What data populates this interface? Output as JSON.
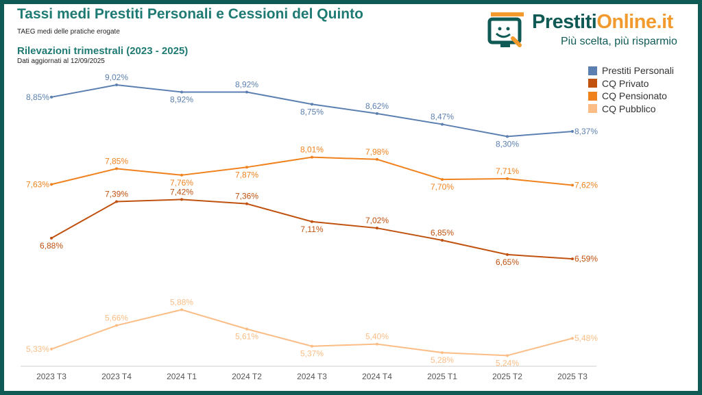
{
  "header": {
    "title": "Tassi medi Prestiti Personali e Cessioni del Quinto",
    "subtitle": "TAEG medi delle pratiche erogate",
    "section": "Rilevazioni trimestrali (2023 - 2025)",
    "updated": "Dati aggiornati al 12/09/2025"
  },
  "logo": {
    "brand_a": "Prestiti",
    "brand_b": "Online.it",
    "tagline": "Più scelta, più risparmio"
  },
  "chart_data": {
    "type": "line",
    "title": "Tassi medi Prestiti Personali e Cessioni del Quinto",
    "xlabel": "",
    "ylabel": "",
    "ylim": [
      5.09,
      9.25
    ],
    "grid": false,
    "legend": "top-right",
    "categories": [
      "2023 T3",
      "2023 T4",
      "2024 T1",
      "2024 T2",
      "2024 T3",
      "2024 T4",
      "2025 T1",
      "2025 T2",
      "2025 T3"
    ],
    "series": [
      {
        "name": "Prestiti Personali",
        "color": "#5b7fb0",
        "values": [
          8.85,
          9.02,
          8.92,
          8.92,
          8.75,
          8.62,
          8.47,
          8.3,
          8.37
        ],
        "labels": [
          "8,85%",
          "9,02%",
          "8,92%",
          "8,92%",
          "8,75%",
          "8,62%",
          "8,47%",
          "8,30%",
          "8,37%"
        ],
        "label_pos": [
          "left",
          "above",
          "below",
          "above",
          "below",
          "above",
          "above",
          "below",
          "right"
        ]
      },
      {
        "name": "CQ Privato",
        "color": "#c0510e",
        "values": [
          6.88,
          7.39,
          7.42,
          7.36,
          7.11,
          7.02,
          6.85,
          6.65,
          6.59
        ],
        "labels": [
          "6,88%",
          "7,39%",
          "7,42%",
          "7,36%",
          "7,11%",
          "7,02%",
          "6,85%",
          "6,65%",
          "6,59%"
        ],
        "label_pos": [
          "below",
          "above",
          "above",
          "above",
          "below",
          "above",
          "above",
          "below",
          "right"
        ]
      },
      {
        "name": "CQ Pensionato",
        "color": "#f0821e",
        "values": [
          7.63,
          7.85,
          7.76,
          7.87,
          8.01,
          7.98,
          7.7,
          7.71,
          7.62
        ],
        "labels": [
          "7,63%",
          "7,85%",
          "7,76%",
          "7,87%",
          "8,01%",
          "7,98%",
          "7,70%",
          "7,71%",
          "7,62%"
        ],
        "label_pos": [
          "left",
          "above",
          "below",
          "below",
          "above",
          "above",
          "below",
          "above",
          "right"
        ]
      },
      {
        "name": "CQ Pubblico",
        "color": "#fbbd85",
        "values": [
          5.33,
          5.66,
          5.88,
          5.61,
          5.37,
          5.4,
          5.28,
          5.24,
          5.48
        ],
        "labels": [
          "5,33%",
          "5,66%",
          "5,88%",
          "5,61%",
          "5,37%",
          "5,40%",
          "5,28%",
          "5,24%",
          "5,48%"
        ],
        "label_pos": [
          "left",
          "above",
          "above",
          "below",
          "below",
          "above",
          "below",
          "below",
          "right"
        ]
      }
    ]
  }
}
